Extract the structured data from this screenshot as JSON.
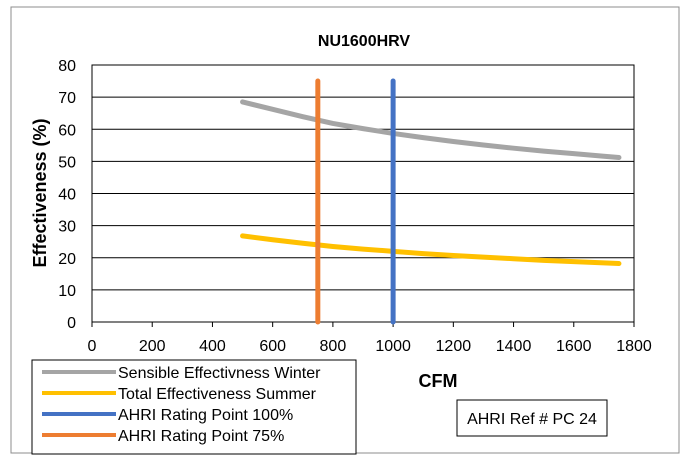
{
  "chart_data": {
    "type": "line",
    "title": "NU1600HRV",
    "xlabel": "CFM",
    "ylabel": "Effectiveness (%)",
    "xlim": [
      0,
      1800
    ],
    "ylim": [
      0,
      80
    ],
    "xticks": [
      0,
      200,
      400,
      600,
      800,
      1000,
      1200,
      1400,
      1600,
      1800
    ],
    "yticks": [
      0,
      10,
      20,
      30,
      40,
      50,
      60,
      70,
      80
    ],
    "grid": "horizontal",
    "legend_position": "bottom-left",
    "series": [
      {
        "name": "Sensible Effectivness Winter",
        "color": "#a5a5a5",
        "x": [
          500,
          600,
          700,
          800,
          900,
          1000,
          1100,
          1200,
          1300,
          1400,
          1500,
          1600,
          1700,
          1750
        ],
        "y": [
          68.5,
          66.2,
          63.9,
          61.8,
          60.2,
          58.7,
          57.4,
          56.2,
          55.1,
          54.1,
          53.2,
          52.4,
          51.6,
          51.2
        ]
      },
      {
        "name": "Total Effectiveness Summer",
        "color": "#ffc000",
        "x": [
          500,
          600,
          700,
          800,
          900,
          1000,
          1100,
          1200,
          1300,
          1400,
          1500,
          1600,
          1700,
          1750
        ],
        "y": [
          26.8,
          25.6,
          24.5,
          23.5,
          22.7,
          22.0,
          21.3,
          20.7,
          20.2,
          19.7,
          19.2,
          18.8,
          18.4,
          18.2
        ]
      },
      {
        "name": "AHRI Rating Point 100%",
        "color": "#4472c4",
        "x": [
          1000,
          1000
        ],
        "y": [
          0,
          75
        ]
      },
      {
        "name": "AHRI Rating Point 75%",
        "color": "#ed7d31",
        "x": [
          750,
          750
        ],
        "y": [
          0,
          75
        ]
      }
    ],
    "annotation": "AHRI Ref # PC 24"
  }
}
